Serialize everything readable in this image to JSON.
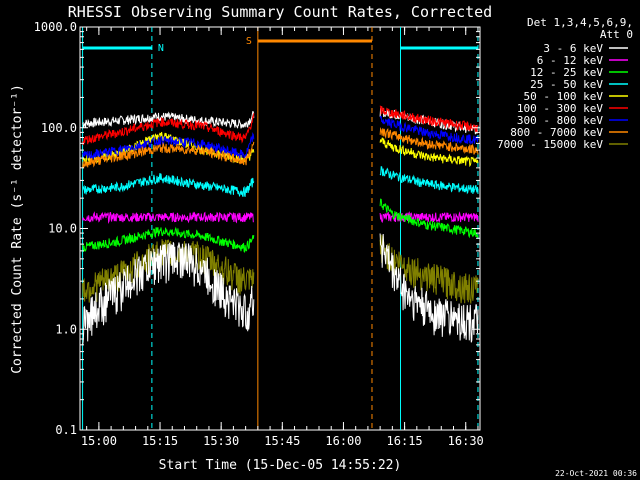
{
  "chart_data": {
    "type": "line",
    "title": "RHESSI Observing Summary Count Rates, Corrected",
    "xlabel": "Start Time (15-Dec-05 14:55:22)",
    "ylabel": "Corrected Count Rate (s⁻¹ detector⁻¹)",
    "yscale": "log",
    "ylim": [
      0.1,
      1000
    ],
    "y_ticks": [
      {
        "value": 0.1,
        "label": "0.1"
      },
      {
        "value": 1,
        "label": "1.0"
      },
      {
        "value": 10,
        "label": "10.0"
      },
      {
        "value": 100,
        "label": "100.0"
      },
      {
        "value": 1000,
        "label": "1000.0"
      }
    ],
    "xlim": [
      "14:55:22",
      "16:33:30"
    ],
    "x_ticks": [
      {
        "value": "15:00",
        "label": "15:00"
      },
      {
        "value": "15:15",
        "label": "15:15"
      },
      {
        "value": "15:30",
        "label": "15:30"
      },
      {
        "value": "15:45",
        "label": "15:45"
      },
      {
        "value": "16:00",
        "label": "16:00"
      },
      {
        "value": "16:15",
        "label": "16:15"
      },
      {
        "value": "16:30",
        "label": "16:30"
      }
    ],
    "legend": {
      "placement": "right",
      "header": [
        "Det 1,3,4,5,6,9,",
        "Att 0"
      ]
    },
    "series": [
      {
        "name": "3 - 6 keV",
        "color": "#ffffff",
        "first": [
          [
            "14:56",
            110
          ],
          [
            "15:05",
            118
          ],
          [
            "15:15",
            130
          ],
          [
            "15:25",
            118
          ],
          [
            "15:36",
            108
          ],
          [
            "15:38",
            135
          ]
        ],
        "second": [
          [
            "16:09",
            145
          ],
          [
            "16:12",
            138
          ],
          [
            "16:20",
            118
          ],
          [
            "16:33",
            95
          ]
        ]
      },
      {
        "name": "6 - 12 keV",
        "color": "#ff00ff",
        "first": [
          [
            "14:56",
            13
          ],
          [
            "15:05",
            13
          ],
          [
            "15:15",
            13
          ],
          [
            "15:25",
            13
          ],
          [
            "15:36",
            13
          ],
          [
            "15:38",
            13
          ]
        ],
        "second": [
          [
            "16:09",
            13
          ],
          [
            "16:12",
            13
          ],
          [
            "16:20",
            13
          ],
          [
            "16:33",
            13
          ]
        ]
      },
      {
        "name": "12 - 25 keV",
        "color": "#00ff00",
        "first": [
          [
            "14:56",
            6.5
          ],
          [
            "15:05",
            7.5
          ],
          [
            "15:15",
            9.5
          ],
          [
            "15:25",
            8.5
          ],
          [
            "15:36",
            6.5
          ],
          [
            "15:38",
            8
          ]
        ],
        "second": [
          [
            "16:09",
            18
          ],
          [
            "16:12",
            14
          ],
          [
            "16:20",
            11
          ],
          [
            "16:33",
            9
          ]
        ]
      },
      {
        "name": "25 - 50 keV",
        "color": "#00ffff",
        "first": [
          [
            "14:56",
            24
          ],
          [
            "15:05",
            26
          ],
          [
            "15:15",
            32
          ],
          [
            "15:25",
            27
          ],
          [
            "15:36",
            23
          ],
          [
            "15:38",
            30
          ]
        ],
        "second": [
          [
            "16:09",
            38
          ],
          [
            "16:12",
            34
          ],
          [
            "16:20",
            28
          ],
          [
            "16:33",
            24
          ]
        ]
      },
      {
        "name": "50 - 100 keV",
        "color": "#ffff00",
        "first": [
          [
            "14:56",
            48
          ],
          [
            "15:05",
            55
          ],
          [
            "15:15",
            85
          ],
          [
            "15:25",
            62
          ],
          [
            "15:36",
            48
          ],
          [
            "15:38",
            58
          ]
        ],
        "second": [
          [
            "16:09",
            75
          ],
          [
            "16:12",
            65
          ],
          [
            "16:20",
            52
          ],
          [
            "16:33",
            45
          ]
        ]
      },
      {
        "name": "100 - 300 keV",
        "color": "#ff0000",
        "first": [
          [
            "14:56",
            75
          ],
          [
            "15:05",
            90
          ],
          [
            "15:15",
            115
          ],
          [
            "15:25",
            105
          ],
          [
            "15:36",
            78
          ],
          [
            "15:38",
            130
          ]
        ],
        "second": [
          [
            "16:09",
            150
          ],
          [
            "16:12",
            140
          ],
          [
            "16:20",
            120
          ],
          [
            "16:33",
            100
          ]
        ]
      },
      {
        "name": "300 - 800 keV",
        "color": "#0000ff",
        "first": [
          [
            "14:56",
            52
          ],
          [
            "15:05",
            60
          ],
          [
            "15:15",
            75
          ],
          [
            "15:25",
            70
          ],
          [
            "15:36",
            53
          ],
          [
            "15:38",
            85
          ]
        ],
        "second": [
          [
            "16:09",
            120
          ],
          [
            "16:12",
            110
          ],
          [
            "16:20",
            90
          ],
          [
            "16:33",
            75
          ]
        ]
      },
      {
        "name": "800 - 7000 keV",
        "color": "#ff8800",
        "first": [
          [
            "14:56",
            44
          ],
          [
            "15:05",
            52
          ],
          [
            "15:15",
            63
          ],
          [
            "15:25",
            60
          ],
          [
            "15:36",
            46
          ],
          [
            "15:38",
            70
          ]
        ],
        "second": [
          [
            "16:09",
            95
          ],
          [
            "16:12",
            85
          ],
          [
            "16:20",
            70
          ],
          [
            "16:33",
            60
          ]
        ]
      },
      {
        "name": "7000 - 15000 keV",
        "color": "#808000",
        "first": [
          [
            "14:56",
            2.5
          ],
          [
            "15:05",
            3.5
          ],
          [
            "15:15",
            6
          ],
          [
            "15:25",
            5.5
          ],
          [
            "15:36",
            3
          ],
          [
            "15:38",
            3
          ]
        ],
        "second": [
          [
            "16:09",
            7
          ],
          [
            "16:12",
            5
          ],
          [
            "16:20",
            3.5
          ],
          [
            "16:33",
            2.5
          ]
        ]
      },
      {
        "name": "",
        "color": "#ffffff",
        "first": [
          [
            "14:56",
            1.2
          ],
          [
            "15:00",
            1.8
          ],
          [
            "15:05",
            2.6
          ],
          [
            "15:10",
            3.8
          ],
          [
            "15:15",
            5
          ],
          [
            "15:20",
            5.5
          ],
          [
            "15:25",
            4.2
          ],
          [
            "15:30",
            2.5
          ],
          [
            "15:36",
            1.5
          ],
          [
            "15:38",
            2
          ]
        ],
        "second": [
          [
            "16:09",
            8
          ],
          [
            "16:12",
            4
          ],
          [
            "16:16",
            2.2
          ],
          [
            "16:22",
            1.5
          ],
          [
            "16:33",
            1.2
          ]
        ]
      }
    ],
    "annotations": [
      {
        "type": "night",
        "label": "N",
        "color": "#00ffff",
        "start": "14:56",
        "end": "15:13",
        "end2": "16:14",
        "end3": "16:33"
      },
      {
        "type": "saa",
        "label": "S",
        "color": "#ff8800",
        "start": "15:39",
        "end": "16:07"
      }
    ],
    "footer": "22-Oct-2021 00:36"
  }
}
